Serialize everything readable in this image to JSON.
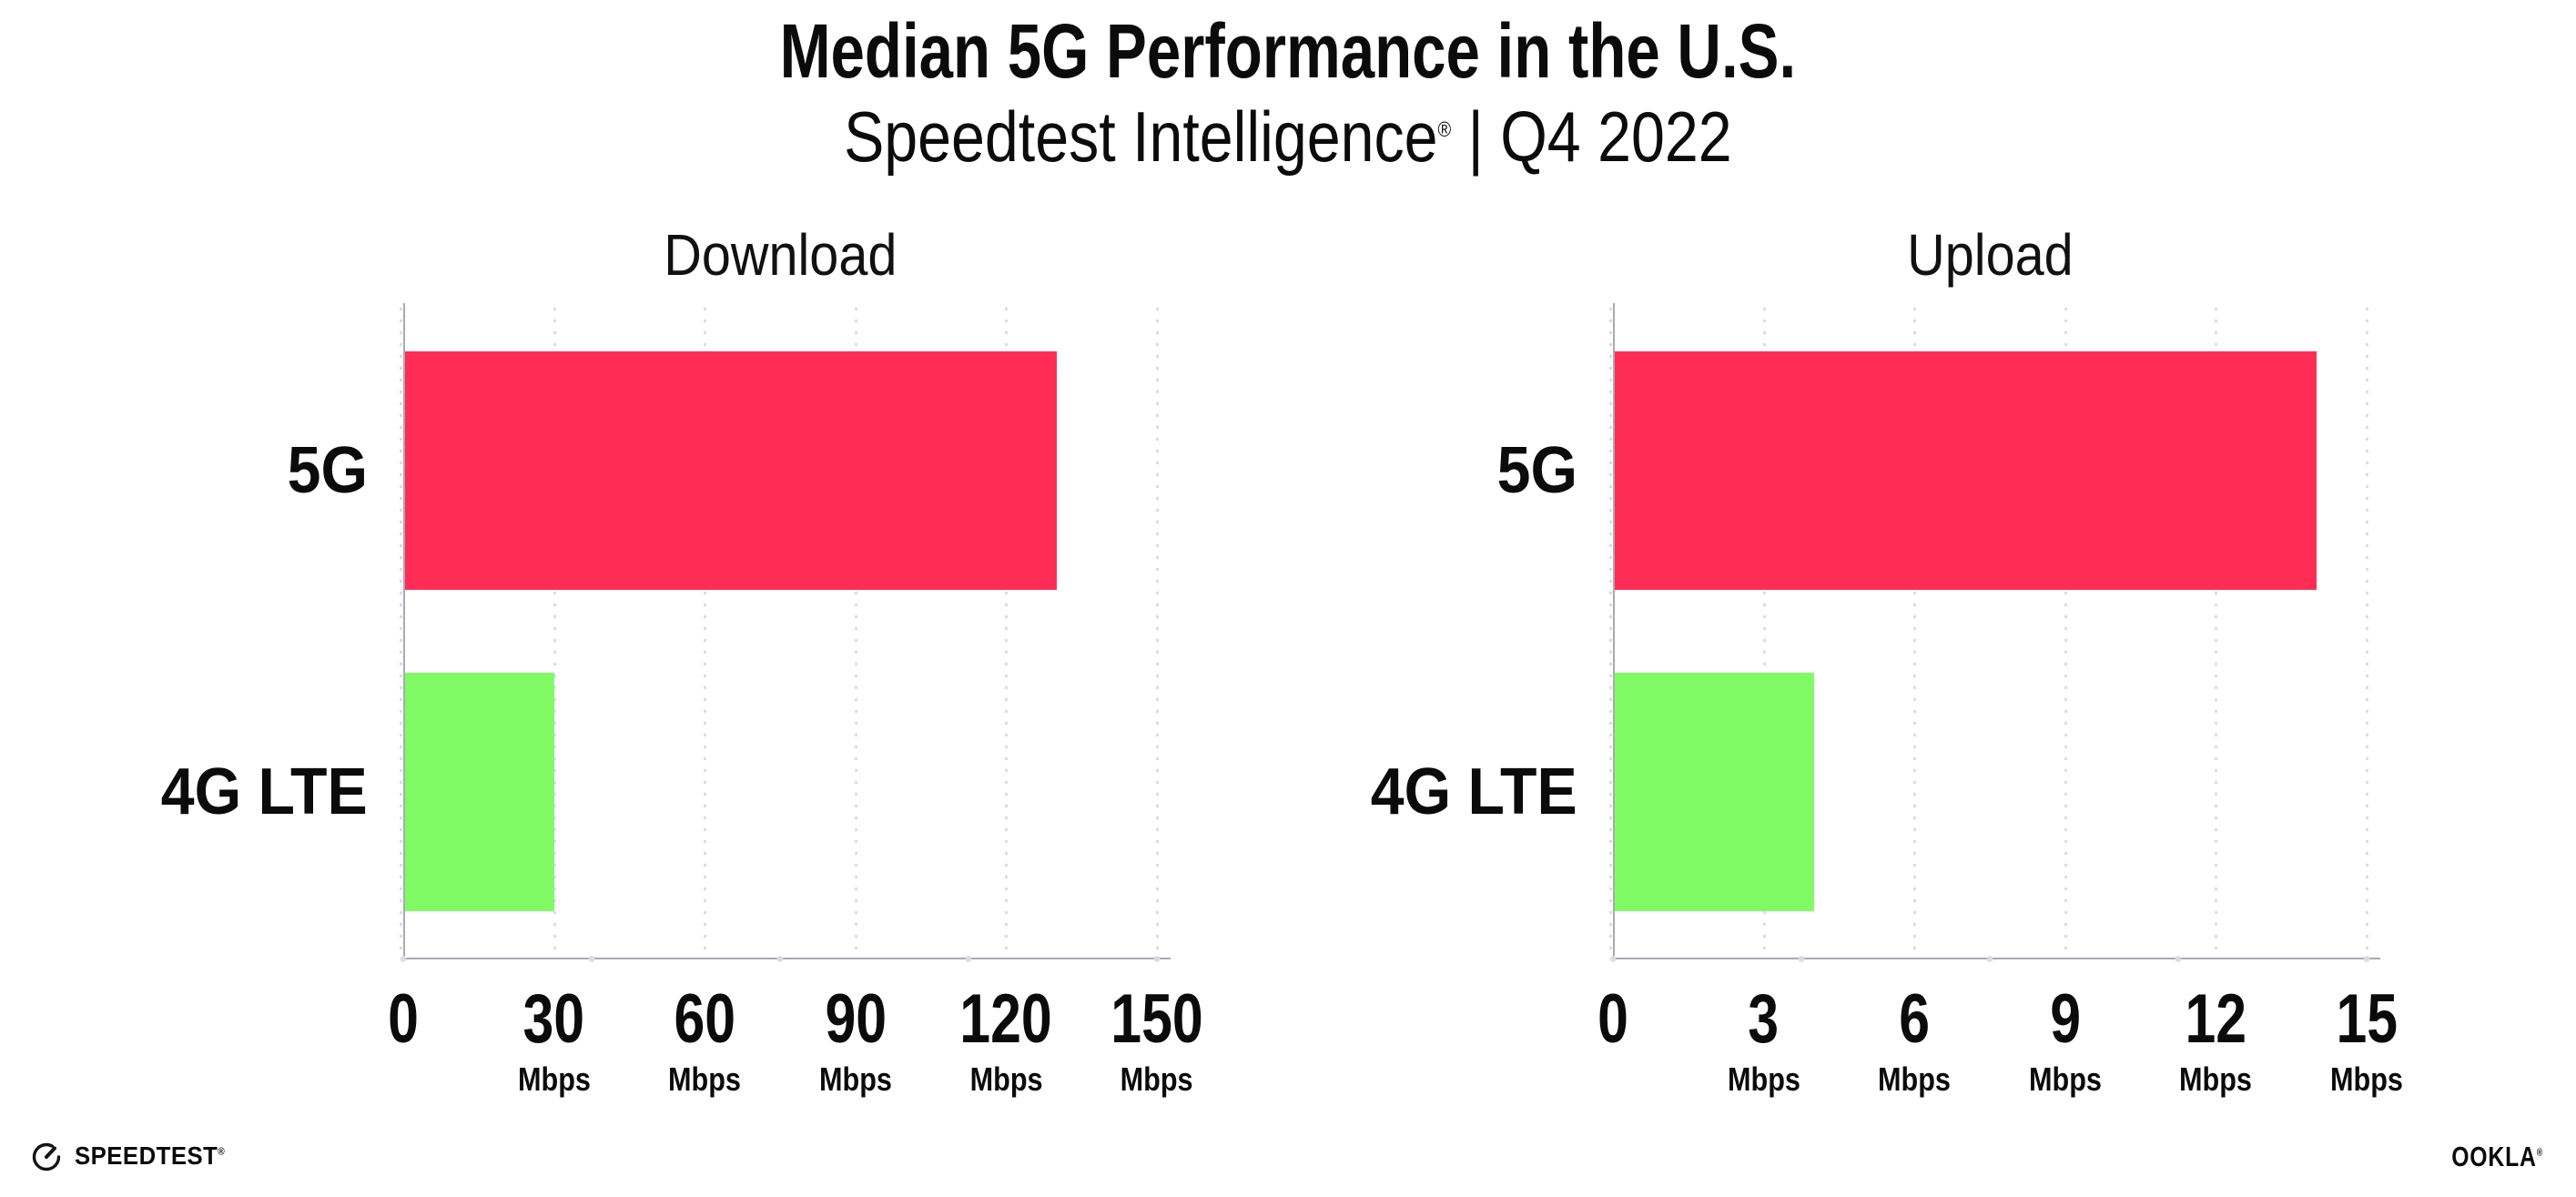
{
  "header": {
    "title": "Median 5G Performance in the U.S.",
    "subtitle_brand": "Speedtest Intelligence",
    "subtitle_reg": "®",
    "subtitle_rest": " | Q4 2022"
  },
  "charts": [
    {
      "title": "Download",
      "categories": [
        {
          "label": "5G"
        },
        {
          "label": "4G LTE"
        }
      ],
      "ticks": [
        {
          "num": "0",
          "unit": ""
        },
        {
          "num": "30",
          "unit": "Mbps"
        },
        {
          "num": "60",
          "unit": "Mbps"
        },
        {
          "num": "90",
          "unit": "Mbps"
        },
        {
          "num": "120",
          "unit": "Mbps"
        },
        {
          "num": "150",
          "unit": "Mbps"
        }
      ]
    },
    {
      "title": "Upload",
      "categories": [
        {
          "label": "5G"
        },
        {
          "label": "4G LTE"
        }
      ],
      "ticks": [
        {
          "num": "0",
          "unit": ""
        },
        {
          "num": "3",
          "unit": "Mbps"
        },
        {
          "num": "6",
          "unit": "Mbps"
        },
        {
          "num": "9",
          "unit": "Mbps"
        },
        {
          "num": "12",
          "unit": "Mbps"
        },
        {
          "num": "15",
          "unit": "Mbps"
        }
      ]
    }
  ],
  "chart_data": [
    {
      "type": "bar",
      "orientation": "horizontal",
      "title": "Download",
      "categories": [
        "5G",
        "4G LTE"
      ],
      "values": [
        130,
        30
      ],
      "unit": "Mbps",
      "xlim": [
        0,
        150
      ],
      "xticks": [
        0,
        30,
        60,
        90,
        120,
        150
      ],
      "bar_colors": [
        "#FF2D55",
        "#80FB66"
      ],
      "grid": "dotted-vertical",
      "legend": "none"
    },
    {
      "type": "bar",
      "orientation": "horizontal",
      "title": "Upload",
      "categories": [
        "5G",
        "4G LTE"
      ],
      "values": [
        14,
        4
      ],
      "unit": "Mbps",
      "xlim": [
        0,
        15
      ],
      "xticks": [
        0,
        3,
        6,
        9,
        12,
        15
      ],
      "bar_colors": [
        "#FF2D55",
        "#80FB66"
      ],
      "grid": "dotted-vertical",
      "legend": "none"
    }
  ],
  "footer": {
    "speedtest_label": "SPEEDTEST",
    "speedtest_reg": "®",
    "ookla_label": "OOKLA",
    "ookla_reg": "®"
  },
  "colors": {
    "bar-5g": "#FF2D55",
    "bar-4g": "#80FB66",
    "axis": "#A9A9B2",
    "grid-dot": "#D9DBE6",
    "text": "#0B0B0C",
    "background": "#FFFFFF"
  }
}
